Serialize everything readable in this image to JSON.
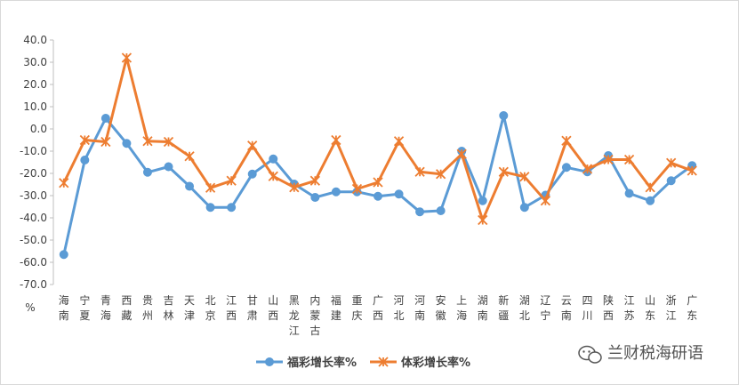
{
  "chart_data": {
    "type": "line",
    "categories": [
      [
        "海",
        "南"
      ],
      [
        "宁",
        "夏"
      ],
      [
        "青",
        "海"
      ],
      [
        "西",
        "藏"
      ],
      [
        "贵",
        "州"
      ],
      [
        "吉",
        "林"
      ],
      [
        "天",
        "津"
      ],
      [
        "北",
        "京"
      ],
      [
        "江",
        "西"
      ],
      [
        "甘",
        "肃"
      ],
      [
        "山",
        "西"
      ],
      [
        "黑",
        "龙",
        "江"
      ],
      [
        "内",
        "蒙",
        "古"
      ],
      [
        "福",
        "建"
      ],
      [
        "重",
        "庆"
      ],
      [
        "广",
        "西"
      ],
      [
        "河",
        "北"
      ],
      [
        "河",
        "南"
      ],
      [
        "安",
        "徽"
      ],
      [
        "上",
        "海"
      ],
      [
        "湖",
        "南"
      ],
      [
        "新",
        "疆"
      ],
      [
        "湖",
        "北"
      ],
      [
        "辽",
        "宁"
      ],
      [
        "云",
        "南"
      ],
      [
        "四",
        "川"
      ],
      [
        "陕",
        "西"
      ],
      [
        "江",
        "苏"
      ],
      [
        "山",
        "东"
      ],
      [
        "浙",
        "江"
      ],
      [
        "广",
        "东"
      ]
    ],
    "series": [
      {
        "name": "福彩增长率%",
        "color": "#5B9BD5",
        "marker": "circle",
        "values": [
          -56.5,
          -14,
          4.8,
          -6.5,
          -19.5,
          -17,
          -25.8,
          -35.3,
          -35.3,
          -20.3,
          -13.5,
          -24.8,
          -30.8,
          -28.3,
          -28.3,
          -30.3,
          -29.3,
          -37.3,
          -36.8,
          -10,
          -32.3,
          6,
          -35.3,
          -29.8,
          -17.3,
          -19.3,
          -12,
          -29,
          -32.3,
          -23.3,
          -16.5
        ]
      },
      {
        "name": "体彩增长率%",
        "color": "#ED7D31",
        "marker": "star",
        "values": [
          -24.3,
          -5,
          -5.8,
          32,
          -5.5,
          -5.8,
          -12.3,
          -26.5,
          -23.3,
          -7.5,
          -21.3,
          -26.3,
          -23.3,
          -5,
          -27,
          -24,
          -5.5,
          -19.3,
          -20.3,
          -11.3,
          -41,
          -19.3,
          -21.5,
          -32.3,
          -5.3,
          -18,
          -13.8,
          -13.8,
          -26.3,
          -15.3,
          -18.8
        ]
      }
    ],
    "yticks": [
      "40.0",
      "30.0",
      "20.0",
      "10.0",
      "0.0",
      "-10.0",
      "-20.0",
      "-30.0",
      "-40.0",
      "-50.0",
      "-60.0",
      "-70.0"
    ],
    "ylim": [
      -70,
      40
    ],
    "ylabel": "%",
    "grid": false,
    "legend": "bottom"
  },
  "watermark": {
    "text": "兰财税海研语"
  }
}
